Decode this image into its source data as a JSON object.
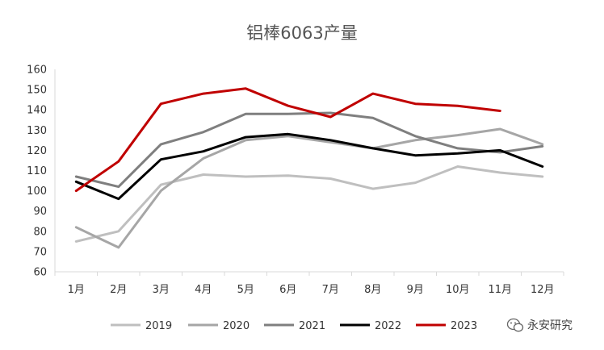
{
  "chart_data": {
    "type": "line",
    "title": "铝棒6063产量",
    "categories": [
      "1月",
      "2月",
      "3月",
      "4月",
      "5月",
      "6月",
      "7月",
      "8月",
      "9月",
      "10月",
      "11月",
      "12月"
    ],
    "ylim": [
      60,
      160
    ],
    "yticks": [
      60,
      70,
      80,
      90,
      100,
      110,
      120,
      130,
      140,
      150,
      160
    ],
    "grid": false,
    "legend_position": "bottom",
    "series": [
      {
        "name": "2019",
        "color": "#bfbfbf",
        "values": [
          75,
          80,
          103,
          108,
          107,
          107.5,
          106,
          101,
          104,
          112,
          109,
          107
        ]
      },
      {
        "name": "2020",
        "color": "#a6a6a6",
        "values": [
          82,
          72,
          100,
          116,
          125,
          127,
          124,
          121,
          125,
          127.5,
          130.5,
          123
        ]
      },
      {
        "name": "2021",
        "color": "#7f7f7f",
        "values": [
          107,
          102,
          123,
          129,
          138,
          138,
          138.5,
          136,
          127,
          121,
          119,
          122
        ]
      },
      {
        "name": "2022",
        "color": "#000000",
        "values": [
          104.5,
          96,
          115.5,
          119.5,
          126.5,
          128,
          125,
          121,
          117.5,
          118.5,
          120,
          112
        ]
      },
      {
        "name": "2023",
        "color": "#c00000",
        "values": [
          100,
          114.5,
          143,
          148,
          150.5,
          142,
          136.5,
          148,
          143,
          142,
          139.5,
          null
        ]
      }
    ]
  },
  "watermark": {
    "text": "永安研究",
    "icon": "wechat-icon"
  }
}
